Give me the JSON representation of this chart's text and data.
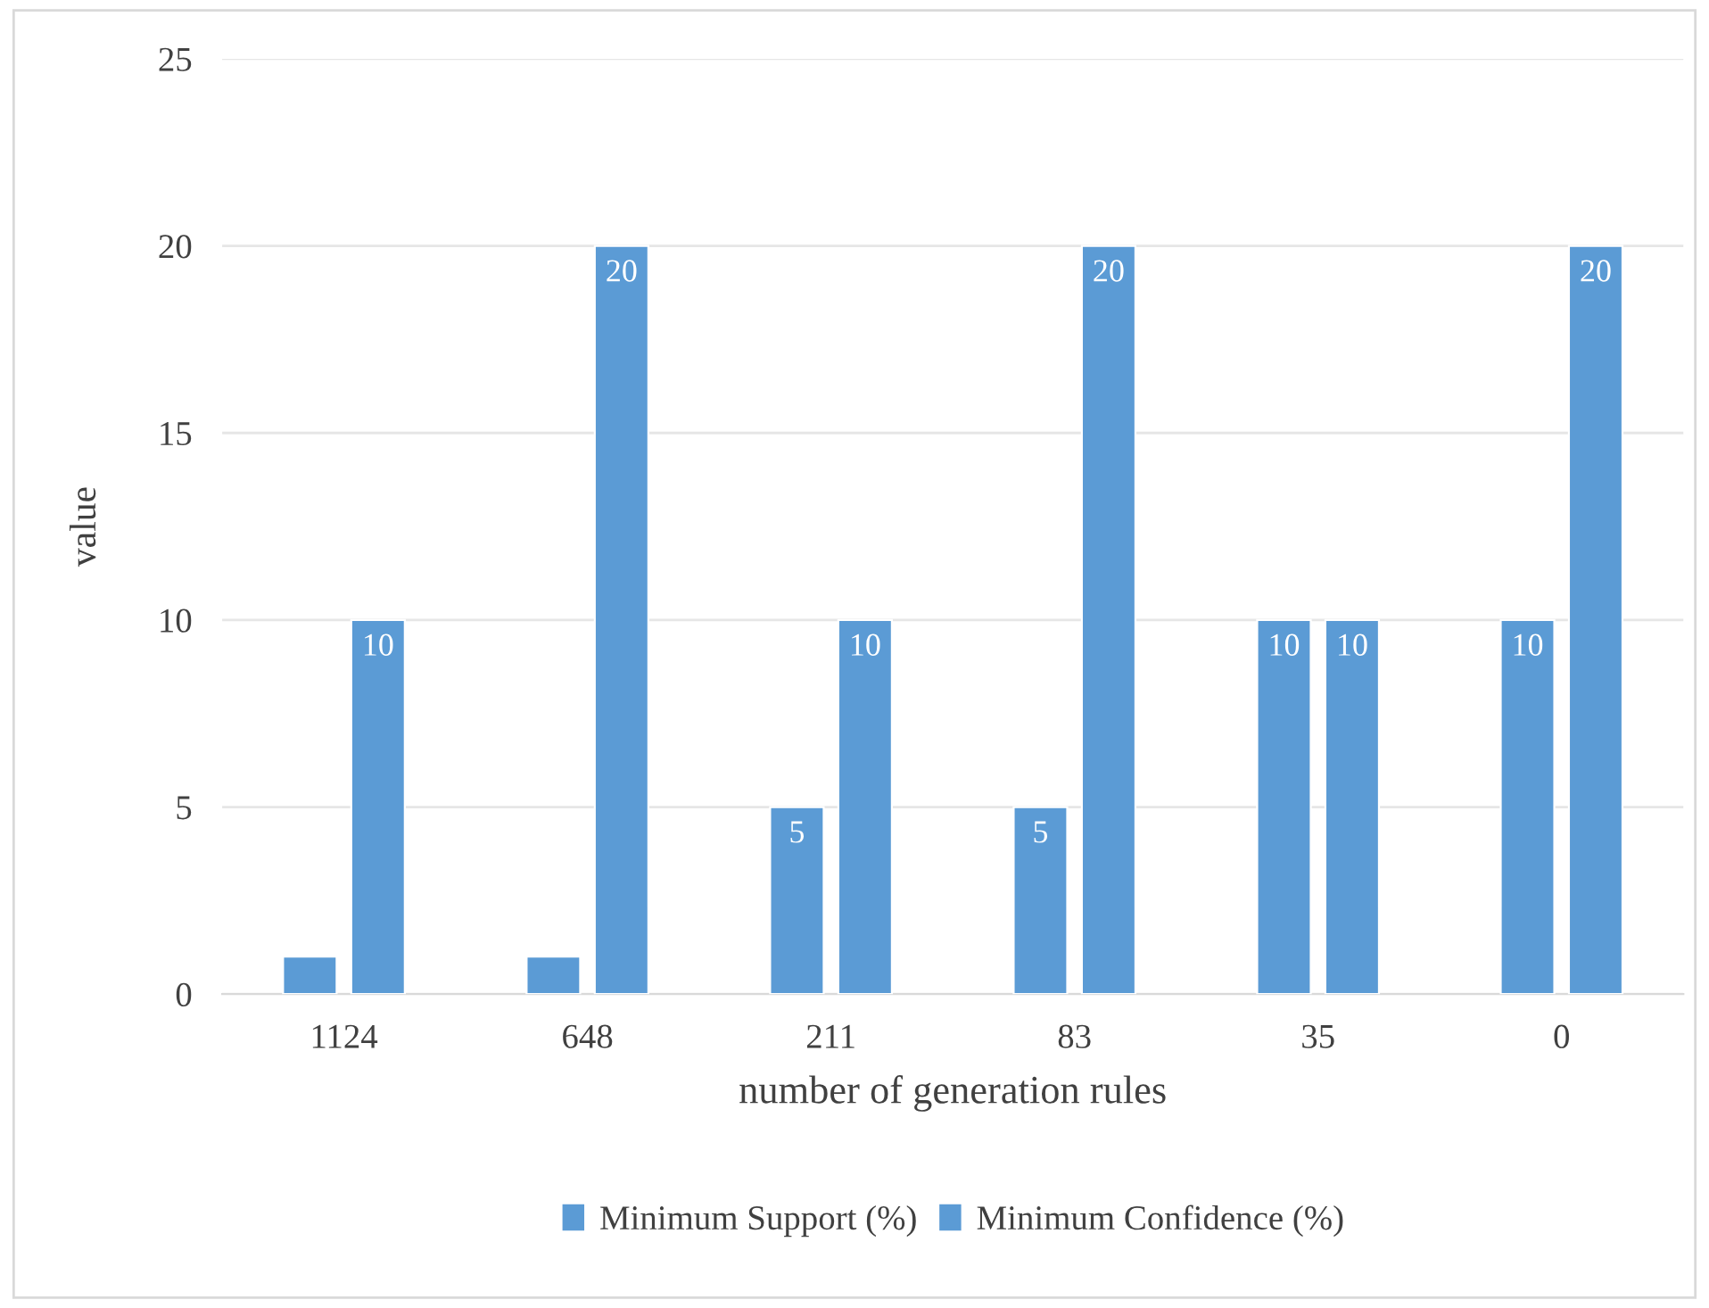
{
  "chart_data": {
    "type": "bar",
    "xlabel": "number of generation rules",
    "ylabel": "value",
    "categories": [
      "1124",
      "648",
      "211",
      "83",
      "35",
      "0"
    ],
    "series": [
      {
        "name": "Minimum Support (%)",
        "color": "#5b9bd5",
        "values": [
          1,
          1,
          5,
          5,
          10,
          10
        ],
        "value_labels": [
          null,
          null,
          "5",
          "5",
          "10",
          "10"
        ]
      },
      {
        "name": "Minimum Confidence (%)",
        "color": "#5b9bd5",
        "values": [
          10,
          20,
          10,
          20,
          10,
          20
        ],
        "value_labels": [
          "10",
          "20",
          "10",
          "20",
          "10",
          "20"
        ]
      }
    ],
    "ylim": [
      0,
      25
    ],
    "yticks": [
      0,
      5,
      10,
      15,
      20,
      25
    ],
    "grid": "y",
    "legend": "bottom"
  }
}
